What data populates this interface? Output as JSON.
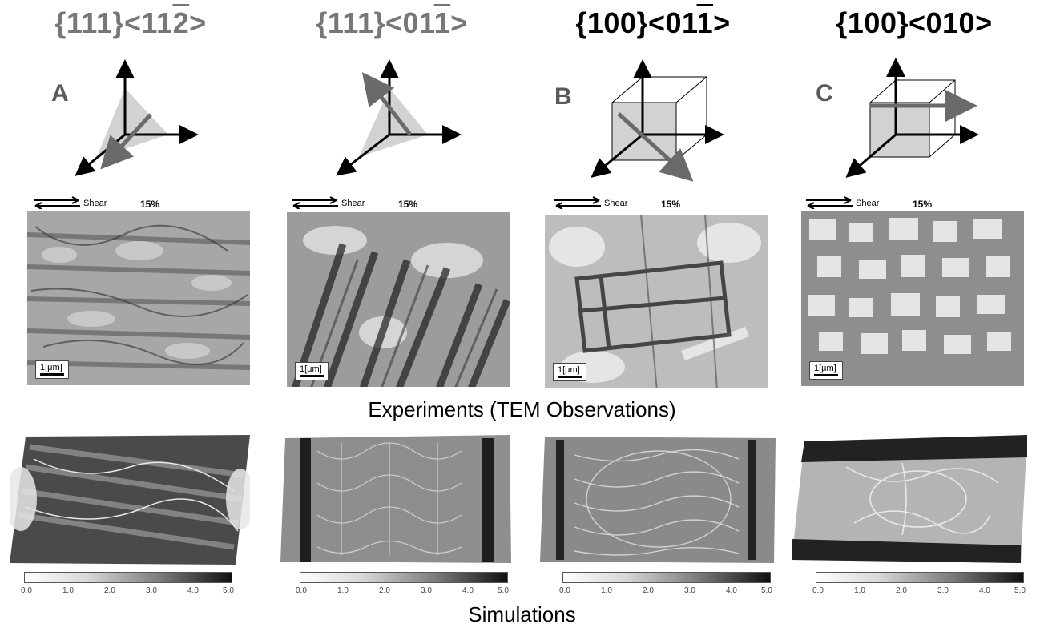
{
  "columns": [
    {
      "orientation": {
        "plane": "{111}",
        "dir_pre": "<11",
        "dir_bar": "2",
        "dir_post": ">"
      },
      "panel": "A"
    },
    {
      "orientation": {
        "plane": "{111}",
        "dir_pre": "<01",
        "dir_bar": "1",
        "dir_post": ">"
      },
      "panel": ""
    },
    {
      "orientation": {
        "plane": "{100}",
        "dir_pre": "<01",
        "dir_bar": "1",
        "dir_post": ">"
      },
      "panel": "B"
    },
    {
      "orientation": {
        "plane": "{100}",
        "dir_pre": "<010>",
        "dir_bar": "",
        "dir_post": ""
      },
      "panel": "C"
    }
  ],
  "tem": {
    "shear_label": "Shear",
    "strain": "15%",
    "scale_label": "1[μm]"
  },
  "captions": {
    "experiments": "Experiments (TEM Observations)",
    "simulations": "Simulations"
  },
  "colorbar": {
    "ticks": [
      "0.0",
      "1.0",
      "2.0",
      "3.0",
      "4.0",
      "5.0"
    ]
  },
  "colors": {
    "title_gray": "#777777",
    "axis_gray": "#6a6a6a",
    "plane_fill": "#d2d2d2"
  }
}
